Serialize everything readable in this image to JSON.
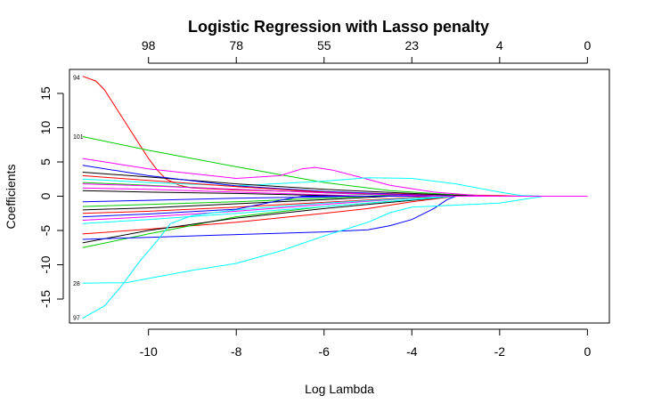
{
  "chart_data": {
    "type": "line",
    "title": "Logistic Regression with Lasso penalty",
    "xlabel": "Log Lambda",
    "ylabel": "Coefficients",
    "xlim": [
      -11.8,
      0.5
    ],
    "ylim": [
      -18.5,
      18.5
    ],
    "x_ticks": [
      -10,
      -8,
      -6,
      -4,
      -2,
      0
    ],
    "y_ticks": [
      -15,
      -10,
      -5,
      0,
      5,
      10,
      15
    ],
    "top_axis": {
      "positions": [
        -10,
        -8,
        -6,
        -4,
        -2,
        0
      ],
      "labels": [
        "98",
        "78",
        "55",
        "23",
        "4",
        "0"
      ]
    },
    "grid": false,
    "legend": "none",
    "series": [
      {
        "name": "94",
        "color": "#FF0000",
        "points": [
          [
            -11.5,
            17.5
          ],
          [
            -11.2,
            16.8
          ],
          [
            -11.0,
            15.5
          ],
          [
            -10.8,
            13.5
          ],
          [
            -10.5,
            10.5
          ],
          [
            -10.2,
            7.5
          ],
          [
            -10.0,
            5.5
          ],
          [
            -9.8,
            3.8
          ],
          [
            -9.6,
            2.5
          ],
          [
            -9.3,
            1.6
          ],
          [
            -9.0,
            1.2
          ],
          [
            -8.0,
            0.9
          ],
          [
            -6.0,
            0.6
          ],
          [
            -4.0,
            0.3
          ],
          [
            -2.0,
            0.1
          ],
          [
            -1.5,
            0.0
          ],
          [
            0.0,
            0.0
          ]
        ]
      },
      {
        "name": "101",
        "color": "#00CD00",
        "points": [
          [
            -11.5,
            8.7
          ],
          [
            -10.0,
            6.7
          ],
          [
            -8.0,
            4.3
          ],
          [
            -6.0,
            2.0
          ],
          [
            -4.5,
            0.8
          ],
          [
            -3.0,
            0.2
          ],
          [
            -2.0,
            0.0
          ],
          [
            0.0,
            0.0
          ]
        ]
      },
      {
        "name": "",
        "color": "#FF00FF",
        "points": [
          [
            -11.5,
            5.5
          ],
          [
            -10.0,
            4.0
          ],
          [
            -8.0,
            2.6
          ],
          [
            -7.0,
            3.0
          ],
          [
            -6.5,
            4.0
          ],
          [
            -6.2,
            4.2
          ],
          [
            -5.8,
            3.8
          ],
          [
            -5.2,
            2.8
          ],
          [
            -4.5,
            1.6
          ],
          [
            -3.5,
            0.6
          ],
          [
            -2.5,
            0.1
          ],
          [
            -2.0,
            0.0
          ],
          [
            0.0,
            0.0
          ]
        ]
      },
      {
        "name": "",
        "color": "#00FFFF",
        "points": [
          [
            -11.5,
            2.5
          ],
          [
            -10.0,
            2.0
          ],
          [
            -8.0,
            1.5
          ],
          [
            -6.0,
            2.2
          ],
          [
            -5.0,
            2.7
          ],
          [
            -4.0,
            2.6
          ],
          [
            -3.0,
            1.8
          ],
          [
            -2.0,
            0.6
          ],
          [
            -1.5,
            0.1
          ],
          [
            -1.0,
            0.0
          ],
          [
            0.0,
            0.0
          ]
        ]
      },
      {
        "name": "",
        "color": "#000000",
        "points": [
          [
            -11.5,
            3.5
          ],
          [
            -10.0,
            2.8
          ],
          [
            -8.0,
            1.8
          ],
          [
            -6.0,
            1.0
          ],
          [
            -4.0,
            0.4
          ],
          [
            -2.5,
            0.0
          ],
          [
            0.0,
            0.0
          ]
        ]
      },
      {
        "name": "",
        "color": "#0000FF",
        "points": [
          [
            -11.5,
            4.5
          ],
          [
            -10.0,
            3.0
          ],
          [
            -8.0,
            1.5
          ],
          [
            -6.0,
            0.7
          ],
          [
            -4.0,
            0.2
          ],
          [
            -3.0,
            0.0
          ],
          [
            0.0,
            0.0
          ]
        ]
      },
      {
        "name": "",
        "color": "#FF0000",
        "points": [
          [
            -11.5,
            3.0
          ],
          [
            -10.0,
            2.3
          ],
          [
            -8.0,
            1.4
          ],
          [
            -6.0,
            0.6
          ],
          [
            -4.0,
            0.1
          ],
          [
            -3.2,
            0.0
          ],
          [
            0.0,
            0.0
          ]
        ]
      },
      {
        "name": "",
        "color": "#00CD00",
        "points": [
          [
            -11.5,
            2.0
          ],
          [
            -10.0,
            1.6
          ],
          [
            -8.0,
            1.0
          ],
          [
            -6.0,
            0.5
          ],
          [
            -4.5,
            0.1
          ],
          [
            -3.8,
            0.0
          ],
          [
            0.0,
            0.0
          ]
        ]
      },
      {
        "name": "",
        "color": "#FF00FF",
        "points": [
          [
            -11.5,
            1.2
          ],
          [
            -10.0,
            1.0
          ],
          [
            -8.0,
            0.6
          ],
          [
            -6.0,
            0.2
          ],
          [
            -5.0,
            0.0
          ],
          [
            0.0,
            0.0
          ]
        ]
      },
      {
        "name": "",
        "color": "#000000",
        "points": [
          [
            -11.5,
            0.8
          ],
          [
            -10.0,
            0.6
          ],
          [
            -8.0,
            0.4
          ],
          [
            -6.0,
            0.1
          ],
          [
            -5.5,
            0.0
          ],
          [
            0.0,
            0.0
          ]
        ]
      },
      {
        "name": "",
        "color": "#0000FF",
        "points": [
          [
            -11.5,
            -0.8
          ],
          [
            -10.0,
            -0.6
          ],
          [
            -8.0,
            -0.3
          ],
          [
            -6.0,
            -0.1
          ],
          [
            -5.5,
            0.0
          ],
          [
            0.0,
            0.0
          ]
        ]
      },
      {
        "name": "",
        "color": "#FF0000",
        "points": [
          [
            -11.5,
            -5.5
          ],
          [
            -10.0,
            -4.8
          ],
          [
            -8.0,
            -3.8
          ],
          [
            -6.0,
            -2.5
          ],
          [
            -5.0,
            -1.8
          ],
          [
            -4.0,
            -0.8
          ],
          [
            -3.0,
            0.0
          ],
          [
            0.0,
            0.0
          ]
        ]
      },
      {
        "name": "",
        "color": "#00CD00",
        "points": [
          [
            -11.5,
            -7.5
          ],
          [
            -10.0,
            -5.5
          ],
          [
            -8.0,
            -3.0
          ],
          [
            -6.0,
            -1.5
          ],
          [
            -4.0,
            -0.5
          ],
          [
            -3.0,
            0.0
          ],
          [
            0.0,
            0.0
          ]
        ]
      },
      {
        "name": "",
        "color": "#000000",
        "points": [
          [
            -11.5,
            -6.8
          ],
          [
            -10.0,
            -5.0
          ],
          [
            -8.0,
            -3.2
          ],
          [
            -6.0,
            -1.8
          ],
          [
            -4.0,
            -0.6
          ],
          [
            -3.0,
            0.0
          ],
          [
            0.0,
            0.0
          ]
        ]
      },
      {
        "name": "",
        "color": "#0000FF",
        "points": [
          [
            -11.5,
            -6.3
          ],
          [
            -10.0,
            -6.0
          ],
          [
            -8.0,
            -5.6
          ],
          [
            -6.0,
            -5.2
          ],
          [
            -5.0,
            -4.9
          ],
          [
            -4.5,
            -4.3
          ],
          [
            -4.0,
            -3.4
          ],
          [
            -3.5,
            -1.8
          ],
          [
            -3.2,
            -0.5
          ],
          [
            -3.0,
            0.0
          ],
          [
            0.0,
            0.0
          ]
        ]
      },
      {
        "name": "",
        "color": "#FF00FF",
        "points": [
          [
            -11.5,
            -3.5
          ],
          [
            -10.0,
            -3.0
          ],
          [
            -8.0,
            -2.2
          ],
          [
            -6.0,
            -1.2
          ],
          [
            -4.0,
            -0.3
          ],
          [
            -3.5,
            0.0
          ],
          [
            0.0,
            0.0
          ]
        ]
      },
      {
        "name": "",
        "color": "#00FFFF",
        "points": [
          [
            -11.5,
            -4.0
          ],
          [
            -10.0,
            -3.4
          ],
          [
            -8.0,
            -2.5
          ],
          [
            -6.0,
            -1.5
          ],
          [
            -4.0,
            -0.5
          ],
          [
            -3.0,
            0.0
          ],
          [
            0.0,
            0.0
          ]
        ]
      },
      {
        "name": "",
        "color": "#FF0000",
        "points": [
          [
            -11.5,
            -2.5
          ],
          [
            -10.0,
            -2.2
          ],
          [
            -8.0,
            -1.6
          ],
          [
            -6.0,
            -0.9
          ],
          [
            -4.0,
            -0.2
          ],
          [
            -3.5,
            0.0
          ],
          [
            0.0,
            0.0
          ]
        ]
      },
      {
        "name": "",
        "color": "#00CD00",
        "points": [
          [
            -11.5,
            -1.5
          ],
          [
            -10.0,
            -1.2
          ],
          [
            -8.0,
            -0.8
          ],
          [
            -6.0,
            -0.3
          ],
          [
            -5.0,
            0.0
          ],
          [
            0.0,
            0.0
          ]
        ]
      },
      {
        "name": "",
        "color": "#000000",
        "points": [
          [
            -11.5,
            -2.0
          ],
          [
            -10.0,
            -1.7
          ],
          [
            -8.0,
            -1.1
          ],
          [
            -6.0,
            -0.5
          ],
          [
            -4.5,
            0.0
          ],
          [
            0.0,
            0.0
          ]
        ]
      },
      {
        "name": "28",
        "color": "#00FFFF",
        "points": [
          [
            -11.5,
            -12.7
          ],
          [
            -10.5,
            -12.6
          ],
          [
            -10.0,
            -12.0
          ],
          [
            -9.0,
            -10.8
          ],
          [
            -8.0,
            -9.8
          ],
          [
            -7.0,
            -8.0
          ],
          [
            -6.0,
            -5.8
          ],
          [
            -5.0,
            -3.8
          ],
          [
            -4.5,
            -2.4
          ],
          [
            -4.0,
            -1.6
          ],
          [
            -3.0,
            -1.3
          ],
          [
            -2.0,
            -1.0
          ],
          [
            -1.5,
            -0.5
          ],
          [
            -1.0,
            0.0
          ],
          [
            0.0,
            0.0
          ]
        ]
      },
      {
        "name": "97",
        "color": "#00FFFF",
        "points": [
          [
            -11.5,
            -17.8
          ],
          [
            -11.0,
            -16.0
          ],
          [
            -10.6,
            -13.0
          ],
          [
            -10.2,
            -9.5
          ],
          [
            -9.8,
            -6.5
          ],
          [
            -9.5,
            -4.0
          ],
          [
            -9.0,
            -2.8
          ],
          [
            -8.0,
            -2.0
          ],
          [
            -6.0,
            -1.0
          ],
          [
            -4.0,
            -0.3
          ],
          [
            -3.0,
            0.0
          ],
          [
            0.0,
            0.0
          ]
        ]
      },
      {
        "name": "",
        "color": "#0000FF",
        "points": [
          [
            -11.5,
            -3.0
          ],
          [
            -10.0,
            -2.6
          ],
          [
            -8.0,
            -1.9
          ],
          [
            -7.0,
            -0.6
          ],
          [
            -6.5,
            0.0
          ],
          [
            0.0,
            0.0
          ]
        ]
      },
      {
        "name": "",
        "color": "#FF00FF",
        "points": [
          [
            -11.5,
            1.8
          ],
          [
            -10.0,
            1.5
          ],
          [
            -8.0,
            1.0
          ],
          [
            -6.0,
            0.5
          ],
          [
            -4.0,
            0.1
          ],
          [
            -3.5,
            0.0
          ],
          [
            0.0,
            0.0
          ]
        ]
      }
    ],
    "side_labels": [
      {
        "text": "94",
        "y": 17.3
      },
      {
        "text": "101",
        "y": 8.7
      },
      {
        "text": "28",
        "y": -12.7
      },
      {
        "text": "97",
        "y": -17.7
      }
    ]
  }
}
